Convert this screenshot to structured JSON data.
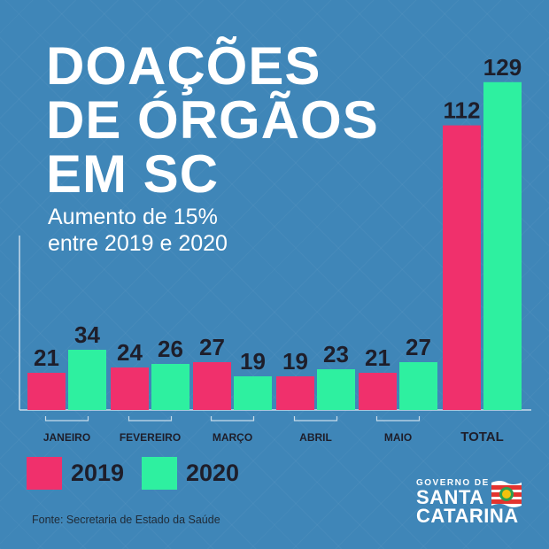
{
  "title_lines": [
    "DOAÇÕES",
    "DE ÓRGÃOS",
    "EM SC"
  ],
  "subtitle_lines": [
    "Aumento de 15%",
    "entre 2019 e 2020"
  ],
  "source": "Fonte: Secretaria de Estado da Saúde",
  "logo": {
    "top": "GOVERNO DE",
    "line1": "SANTA",
    "line2": "CATARINA"
  },
  "colors": {
    "2019": "#f0306c",
    "2020": "#2ef0a0",
    "background": "#3f86b8"
  },
  "chart_data": {
    "type": "bar",
    "categories": [
      "JANEIRO",
      "FEVEREIRO",
      "MARÇO",
      "ABRIL",
      "MAIO",
      "TOTAL"
    ],
    "series": [
      {
        "name": "2019",
        "values": [
          21,
          24,
          27,
          19,
          21,
          112
        ]
      },
      {
        "name": "2020",
        "values": [
          34,
          26,
          19,
          23,
          27,
          129
        ]
      }
    ],
    "data_labels": true,
    "legend_position": "bottom-left",
    "note": "TOTAL bars drawn on a compressed scale"
  }
}
